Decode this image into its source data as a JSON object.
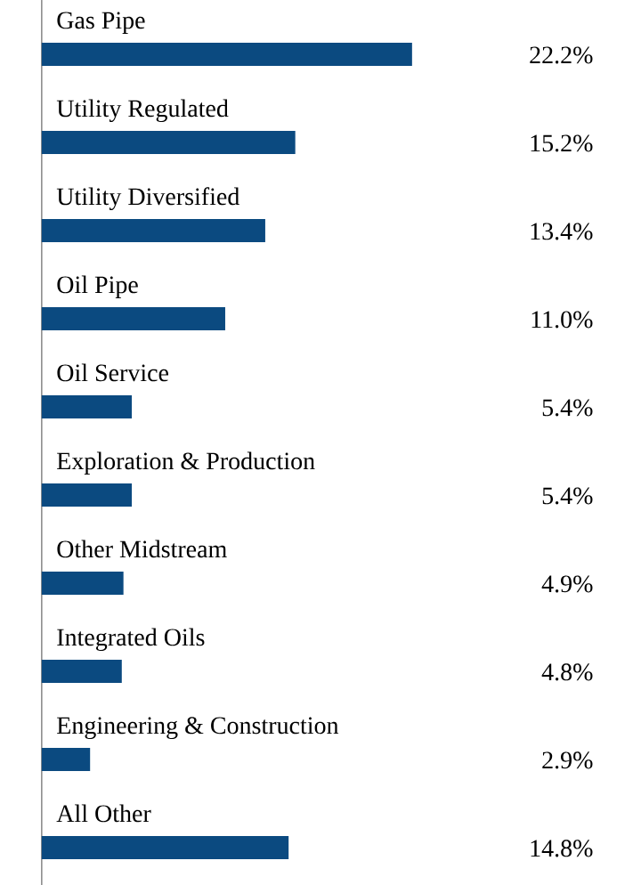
{
  "chart_data": {
    "type": "bar",
    "orientation": "horizontal",
    "categories": [
      "Gas Pipe",
      "Utility Regulated",
      "Utility Diversified",
      "Oil Pipe",
      "Oil Service",
      "Exploration & Production",
      "Other Midstream",
      "Integrated Oils",
      "Engineering & Construction",
      "All Other"
    ],
    "values": [
      22.2,
      15.2,
      13.4,
      11.0,
      5.4,
      5.4,
      4.9,
      4.8,
      2.9,
      14.8
    ],
    "value_labels": [
      "22.2%",
      "15.2%",
      "13.4%",
      "11.0%",
      "5.4%",
      "5.4%",
      "4.9%",
      "4.8%",
      "2.9%",
      "14.8%"
    ],
    "color": "#0b4a80"
  }
}
